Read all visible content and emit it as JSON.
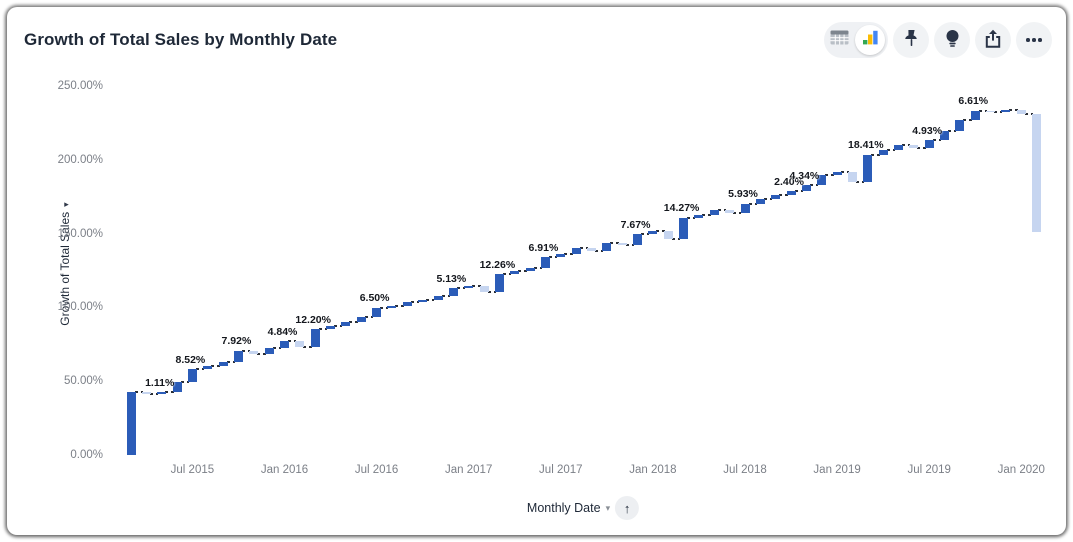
{
  "header": {
    "title": "Growth of Total Sales by Monthly Date"
  },
  "toolbar": {
    "view_toggle": {
      "options": [
        {
          "name": "table-view",
          "icon": "table-icon",
          "selected": false
        },
        {
          "name": "chart-view",
          "icon": "chart-icon",
          "selected": true
        }
      ]
    },
    "buttons": [
      {
        "name": "pin",
        "icon": "pushpin-icon"
      },
      {
        "name": "insights",
        "icon": "lightbulb-icon"
      },
      {
        "name": "export",
        "icon": "export-icon"
      },
      {
        "name": "more",
        "icon": "ellipsis-icon"
      }
    ],
    "chart_icon_colors": {
      "green": "#34A853",
      "yellow": "#FBBC04",
      "blue": "#4285F4"
    }
  },
  "y_axis": {
    "expand_icon": "▸"
  },
  "footer": {
    "caret_icon": "▾",
    "sort_icon": "↑",
    "sort_order": "ascending"
  },
  "chart_data": {
    "type": "bar",
    "subtype": "waterfall",
    "title": "Growth of Total Sales by Monthly Date",
    "xlabel": "Monthly Date",
    "ylabel": "Growth of Total Sales",
    "ylim": [
      0,
      250
    ],
    "grid": "off",
    "legend": "none",
    "y_ticks": [
      {
        "value": 0,
        "label": "0.00%"
      },
      {
        "value": 50,
        "label": "50.00%"
      },
      {
        "value": 100,
        "label": "100.00%"
      },
      {
        "value": 150,
        "label": "150.00%"
      },
      {
        "value": 200,
        "label": "200.00%"
      },
      {
        "value": 250,
        "label": "250.00%"
      }
    ],
    "x_ticks": [
      {
        "month_index": 4,
        "label": "Jul 2015"
      },
      {
        "month_index": 10,
        "label": "Jan 2016"
      },
      {
        "month_index": 16,
        "label": "Jul 2016"
      },
      {
        "month_index": 22,
        "label": "Jan 2017"
      },
      {
        "month_index": 28,
        "label": "Jul 2017"
      },
      {
        "month_index": 34,
        "label": "Jan 2018"
      },
      {
        "month_index": 40,
        "label": "Jul 2018"
      },
      {
        "month_index": 46,
        "label": "Jan 2019"
      },
      {
        "month_index": 52,
        "label": "Jul 2019"
      },
      {
        "month_index": 58,
        "label": "Jan 2020"
      }
    ],
    "months": [
      "Mar 2015",
      "Apr 2015",
      "May 2015",
      "Jun 2015",
      "Jul 2015",
      "Aug 2015",
      "Sep 2015",
      "Oct 2015",
      "Nov 2015",
      "Dec 2015",
      "Jan 2016",
      "Feb 2016",
      "Mar 2016",
      "Apr 2016",
      "May 2016",
      "Jun 2016",
      "Jul 2016",
      "Aug 2016",
      "Sep 2016",
      "Oct 2016",
      "Nov 2016",
      "Dec 2016",
      "Jan 2017",
      "Feb 2017",
      "Mar 2017",
      "Apr 2017",
      "May 2017",
      "Jun 2017",
      "Jul 2017",
      "Aug 2017",
      "Sep 2017",
      "Oct 2017",
      "Nov 2017",
      "Dec 2017",
      "Jan 2018",
      "Feb 2018",
      "Mar 2018",
      "Apr 2018",
      "May 2018",
      "Jun 2018",
      "Jul 2018",
      "Aug 2018",
      "Sep 2018",
      "Oct 2018",
      "Nov 2018",
      "Dec 2018",
      "Jan 2019",
      "Feb 2019",
      "Mar 2019",
      "Apr 2019",
      "May 2019",
      "Jun 2019",
      "Jul 2019",
      "Aug 2019",
      "Sep 2019",
      "Oct 2019",
      "Nov 2019",
      "Dec 2019",
      "Jan 2020",
      "Feb 2020"
    ],
    "deltas": [
      42.6,
      -1.11,
      1.11,
      7.0,
      8.52,
      2.0,
      2.7,
      7.92,
      -2.5,
      4.0,
      4.84,
      -4.0,
      12.2,
      2.0,
      2.5,
      3.5,
      6.5,
      1.5,
      2.5,
      1.5,
      2.5,
      5.13,
      1.8,
      -4.5,
      12.26,
      2.0,
      2.5,
      6.91,
      2.6,
      3.5,
      -1.5,
      5.0,
      -1.5,
      7.67,
      2.3,
      -5.5,
      14.27,
      2.0,
      3.0,
      -1.5,
      5.93,
      3.0,
      3.0,
      2.4,
      4.34,
      6.5,
      2.5,
      -7.0,
      18.41,
      3.5,
      3.0,
      -1.5,
      4.93,
      6.0,
      7.5,
      6.61,
      -1.2,
      1.5,
      -2.3,
      -80.0
    ],
    "value_labels": [
      {
        "index": 2,
        "text": "1.11%"
      },
      {
        "index": 4,
        "text": "8.52%"
      },
      {
        "index": 7,
        "text": "7.92%"
      },
      {
        "index": 10,
        "text": "4.84%"
      },
      {
        "index": 12,
        "text": "12.20%"
      },
      {
        "index": 16,
        "text": "6.50%"
      },
      {
        "index": 21,
        "text": "5.13%"
      },
      {
        "index": 24,
        "text": "12.26%"
      },
      {
        "index": 27,
        "text": "6.91%"
      },
      {
        "index": 33,
        "text": "7.67%"
      },
      {
        "index": 36,
        "text": "14.27%"
      },
      {
        "index": 40,
        "text": "5.93%"
      },
      {
        "index": 43,
        "text": "2.40%"
      },
      {
        "index": 44,
        "text": "4.34%"
      },
      {
        "index": 48,
        "text": "18.41%"
      },
      {
        "index": 52,
        "text": "4.93%"
      },
      {
        "index": 55,
        "text": "6.61%"
      }
    ],
    "colors": {
      "increase": "#2b5cb8",
      "decrease": "#c6d5f0",
      "connector": "#2b2f36"
    }
  }
}
